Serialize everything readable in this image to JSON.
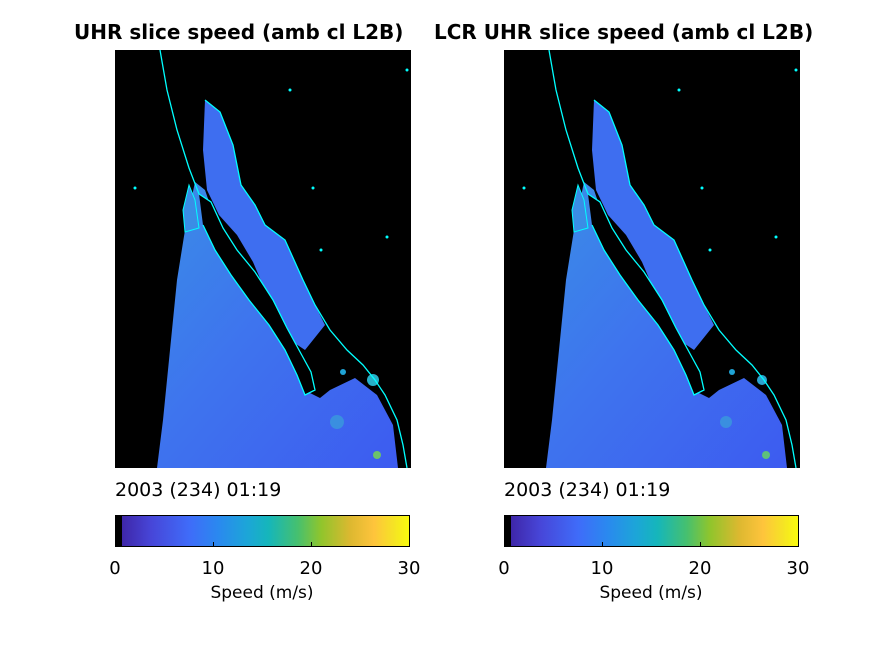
{
  "panels": [
    {
      "title": "UHR slice speed (amb cl L2B)",
      "timestamp": "2003 (234) 01:19",
      "colorbar": {
        "ticks": [
          "0",
          "10",
          "20",
          "30"
        ],
        "label": "Speed (m/s)"
      }
    },
    {
      "title": "LCR UHR slice speed (amb cl L2B)",
      "timestamp": "2003 (234) 01:19",
      "colorbar": {
        "ticks": [
          "0",
          "10",
          "20",
          "30"
        ],
        "label": "Speed (m/s)"
      }
    }
  ],
  "colors": {
    "land_background": "#000000",
    "coastline": "#00ffff",
    "ocean_low": "#3d5bf0",
    "ocean_mid": "#3a8de6"
  },
  "colorbar_range": [
    0,
    30
  ]
}
